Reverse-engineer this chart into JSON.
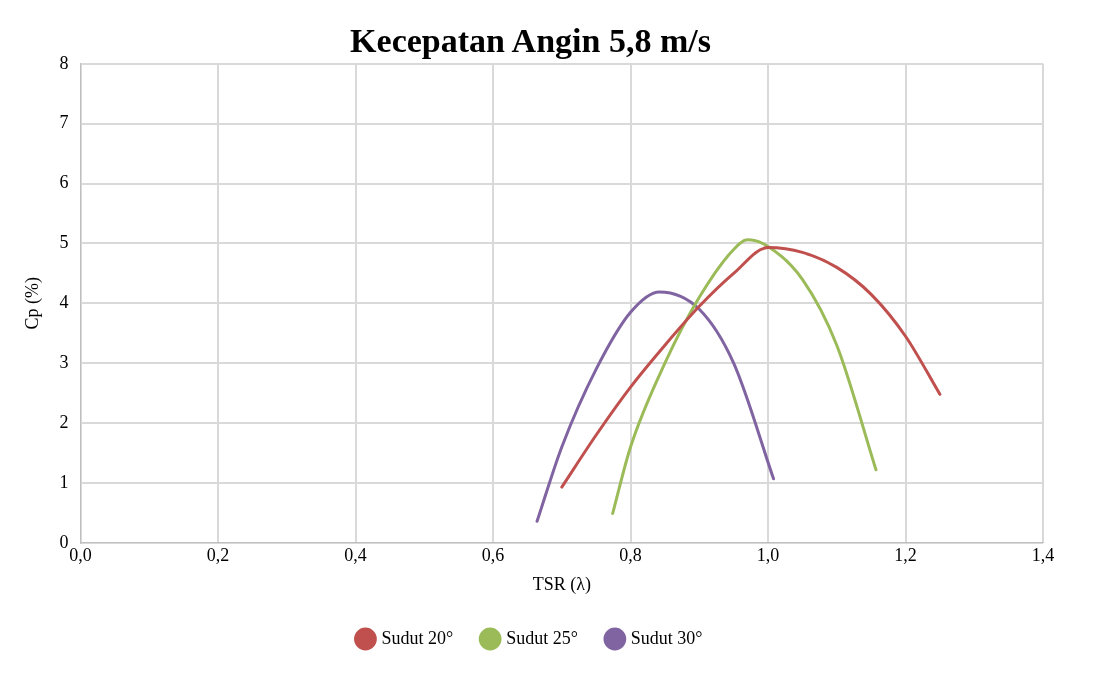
{
  "chart_data": {
    "type": "line",
    "title": "Kecepatan Angin 5,8 m/s",
    "xlabel": "TSR (λ)",
    "ylabel": "Cp (%)",
    "xlim": [
      0,
      1.4
    ],
    "xticks": [
      {
        "value": 0,
        "label": "0,0"
      },
      {
        "value": 0.2,
        "label": "0,2"
      },
      {
        "value": 0.4,
        "label": "0,4"
      },
      {
        "value": 0.6,
        "label": "0,6"
      },
      {
        "value": 0.8,
        "label": "0,8"
      },
      {
        "value": 1.0,
        "label": "1,0"
      },
      {
        "value": 1.2,
        "label": "1,2"
      },
      {
        "value": 1.4,
        "label": "1,4"
      }
    ],
    "ylim": [
      0,
      8
    ],
    "yticks": [
      0,
      1,
      2,
      3,
      4,
      5,
      6,
      7,
      8
    ],
    "grid": true,
    "legend": "bottom",
    "marker": "none",
    "line_style": "solid",
    "series": [
      {
        "name": "Sudut 20°",
        "color": "#c0504d",
        "x": [
          0.7,
          0.75,
          0.8,
          0.85,
          0.9,
          0.95,
          1.0,
          1.05,
          1.1,
          1.15,
          1.2,
          1.25
        ],
        "values": [
          0.93,
          1.8,
          2.6,
          3.3,
          3.95,
          4.5,
          4.93,
          4.85,
          4.6,
          4.15,
          3.45,
          2.48
        ]
      },
      {
        "name": "Sudut 25°",
        "color": "#9bbb59",
        "x": [
          0.774,
          0.8,
          0.85,
          0.9,
          0.95,
          0.97,
          1.0,
          1.05,
          1.1,
          1.157
        ],
        "values": [
          0.49,
          1.6,
          3.0,
          4.1,
          4.9,
          5.06,
          4.95,
          4.4,
          3.3,
          1.22
        ]
      },
      {
        "name": "Sudut 30°",
        "color": "#8064a2",
        "x": [
          0.664,
          0.7,
          0.75,
          0.8,
          0.842,
          0.9,
          0.95,
          1.008
        ],
        "values": [
          0.36,
          1.6,
          2.9,
          3.85,
          4.19,
          3.9,
          3.0,
          1.07
        ]
      }
    ]
  }
}
